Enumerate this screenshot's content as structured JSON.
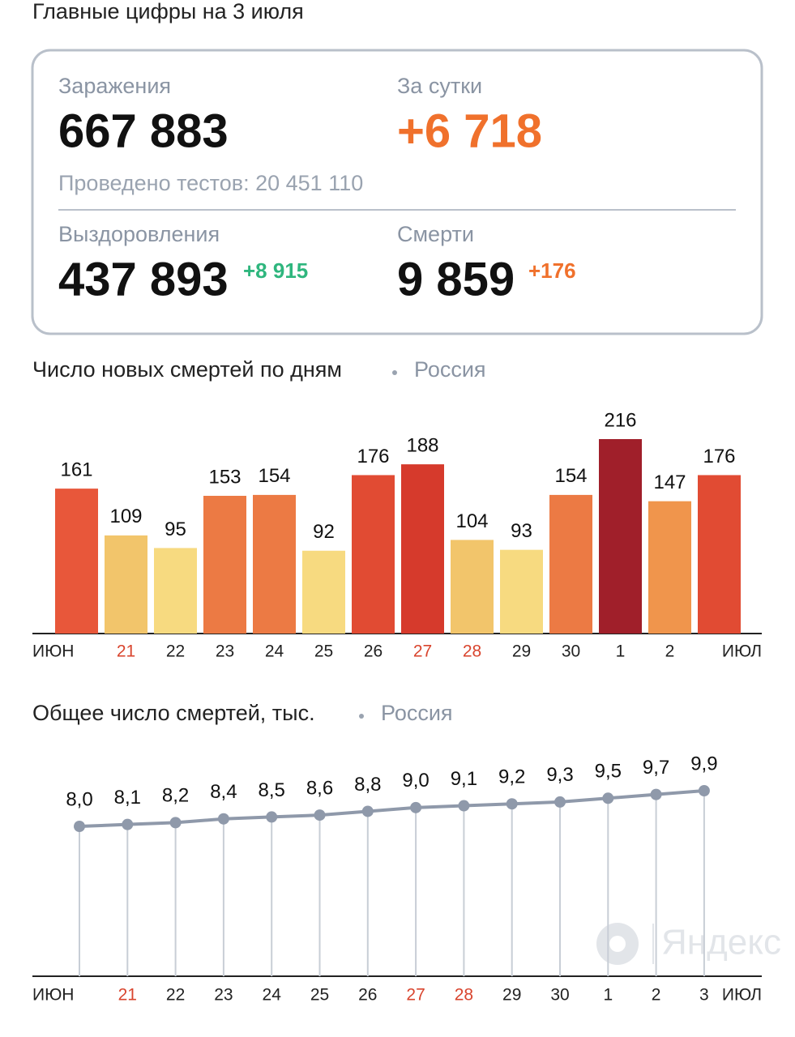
{
  "header": {
    "title": "Главные цифры на 3 июля"
  },
  "stats": {
    "infections_label": "Заражения",
    "infections": "667 883",
    "daily_label": "За сутки",
    "daily": "+6 718",
    "tests": "Проведено тестов: 20 451 110",
    "recovered_label": "Выздоровления",
    "recovered": "437 893",
    "recovered_delta": "+8 915",
    "deaths_label": "Смерти",
    "deaths": "9 859",
    "deaths_delta": "+176"
  },
  "chart_data": [
    {
      "type": "bar",
      "title": "Число новых смертей по дням",
      "subtitle": "Россия",
      "categories": [
        "ИЮН",
        "21",
        "22",
        "23",
        "24",
        "25",
        "26",
        "27",
        "28",
        "29",
        "30",
        "1",
        "2",
        "ИЮЛ"
      ],
      "category_colors": [
        "#222",
        "#d9452e",
        "#222",
        "#222",
        "#222",
        "#222",
        "#222",
        "#d9452e",
        "#d9452e",
        "#222",
        "#222",
        "#222",
        "#222",
        "#222"
      ],
      "values": [
        161,
        109,
        95,
        153,
        154,
        92,
        176,
        188,
        104,
        93,
        154,
        216,
        147,
        176
      ],
      "colors": [
        "#e8573a",
        "#f2c56b",
        "#f7da80",
        "#ec7a44",
        "#ec7a44",
        "#f7da80",
        "#e14b33",
        "#d63a2c",
        "#f2c56b",
        "#f7da80",
        "#ec7a44",
        "#a01f2a",
        "#f0954c",
        "#e14b33"
      ]
    },
    {
      "type": "line",
      "title": "Общее число смертей, тыс.",
      "subtitle": "Россия",
      "axis_start_label": "ИЮН",
      "axis_end_label": "ИЮЛ",
      "categories": [
        null,
        "21",
        "22",
        "23",
        "24",
        "25",
        "26",
        "27",
        "28",
        "29",
        "30",
        "1",
        "2",
        "3"
      ],
      "category_colors": [
        "#222",
        "#d9452e",
        "#222",
        "#222",
        "#222",
        "#222",
        "#222",
        "#d9452e",
        "#d9452e",
        "#222",
        "#222",
        "#222",
        "#222",
        "#222"
      ],
      "values": [
        8.0,
        8.1,
        8.2,
        8.4,
        8.5,
        8.6,
        8.8,
        9.0,
        9.1,
        9.2,
        9.3,
        9.5,
        9.7,
        9.9
      ],
      "value_labels": [
        "8,0",
        "8,1",
        "8,2",
        "8,4",
        "8,5",
        "8,6",
        "8,8",
        "9,0",
        "9,1",
        "9,2",
        "9,3",
        "9,5",
        "9,7",
        "9,9"
      ],
      "color": "#8f99aa"
    }
  ],
  "watermark": "Яндекс"
}
